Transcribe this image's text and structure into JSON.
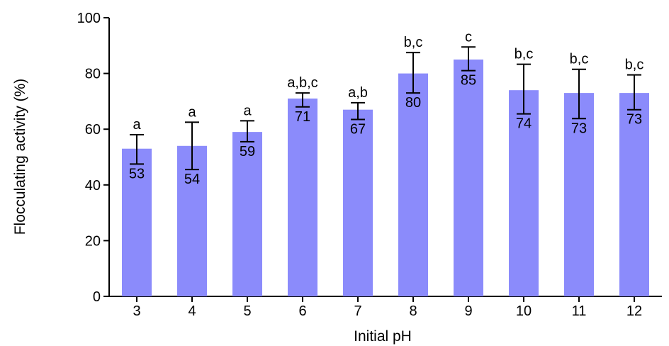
{
  "chart_data": {
    "type": "bar",
    "xlabel": "Initial pH",
    "ylabel": "Flocculating activity (%)",
    "ylim": [
      0,
      100
    ],
    "yticks": [
      0,
      20,
      40,
      60,
      80,
      100
    ],
    "grid": false,
    "bar_color": "#8b8bfb",
    "categories": [
      "3",
      "4",
      "5",
      "6",
      "7",
      "8",
      "9",
      "10",
      "11",
      "12"
    ],
    "values": [
      53,
      54,
      59,
      71,
      67,
      80,
      85,
      74,
      73,
      73
    ],
    "value_labels": [
      "53",
      "54",
      "59",
      "71",
      "67",
      "80",
      "85",
      "74",
      "73",
      "73"
    ],
    "error_high": [
      58,
      62.5,
      63,
      73,
      69.5,
      87.5,
      89.5,
      83.3,
      81.5,
      79.5
    ],
    "error_low": [
      47.5,
      45.5,
      55.5,
      68,
      63.5,
      73,
      81,
      65.5,
      63.8,
      67
    ],
    "significance": [
      "a",
      "a",
      "a",
      "a,b,c",
      "a,b",
      "b,c",
      "c",
      "b,c",
      "b,c",
      "b,c"
    ]
  }
}
